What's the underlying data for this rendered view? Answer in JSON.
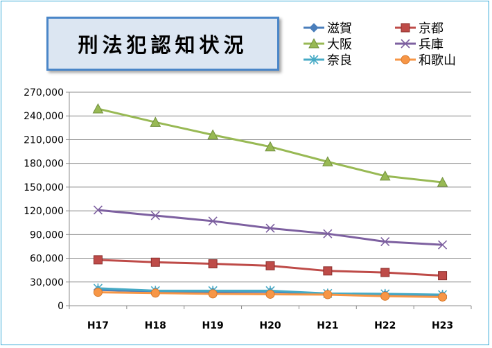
{
  "chart_data": {
    "type": "line",
    "title": "刑法犯認知状況",
    "categories": [
      "H17",
      "H18",
      "H19",
      "H20",
      "H21",
      "H22",
      "H23"
    ],
    "ylim": [
      0,
      270000
    ],
    "yticks": [
      0,
      30000,
      60000,
      90000,
      120000,
      150000,
      180000,
      210000,
      240000,
      270000
    ],
    "ytick_labels": [
      "0",
      "30,000",
      "60,000",
      "90,000",
      "120,000",
      "150,000",
      "180,000",
      "210,000",
      "240,000",
      "270,000"
    ],
    "grid": true,
    "legend_position": "top-right",
    "series": [
      {
        "name": "滋賀",
        "color": "#4a7ebb",
        "marker": "diamond",
        "values": [
          20000,
          18000,
          17500,
          17500,
          15000,
          14000,
          13000
        ]
      },
      {
        "name": "京都",
        "color": "#be4b48",
        "marker": "square",
        "values": [
          58000,
          55000,
          53000,
          50500,
          44000,
          42000,
          38000
        ]
      },
      {
        "name": "大阪",
        "color": "#98b954",
        "marker": "triangle",
        "values": [
          249000,
          232000,
          216000,
          201000,
          182000,
          164000,
          156000
        ]
      },
      {
        "name": "兵庫",
        "color": "#7d60a0",
        "marker": "x",
        "values": [
          121000,
          114000,
          107000,
          98000,
          91000,
          81000,
          77000
        ]
      },
      {
        "name": "奈良",
        "color": "#46aac5",
        "marker": "star",
        "values": [
          22000,
          19000,
          19000,
          19000,
          15500,
          15000,
          14000
        ]
      },
      {
        "name": "和歌山",
        "color": "#f79646",
        "marker": "circle",
        "values": [
          17000,
          16000,
          15000,
          14500,
          14000,
          12000,
          11000
        ]
      }
    ]
  }
}
